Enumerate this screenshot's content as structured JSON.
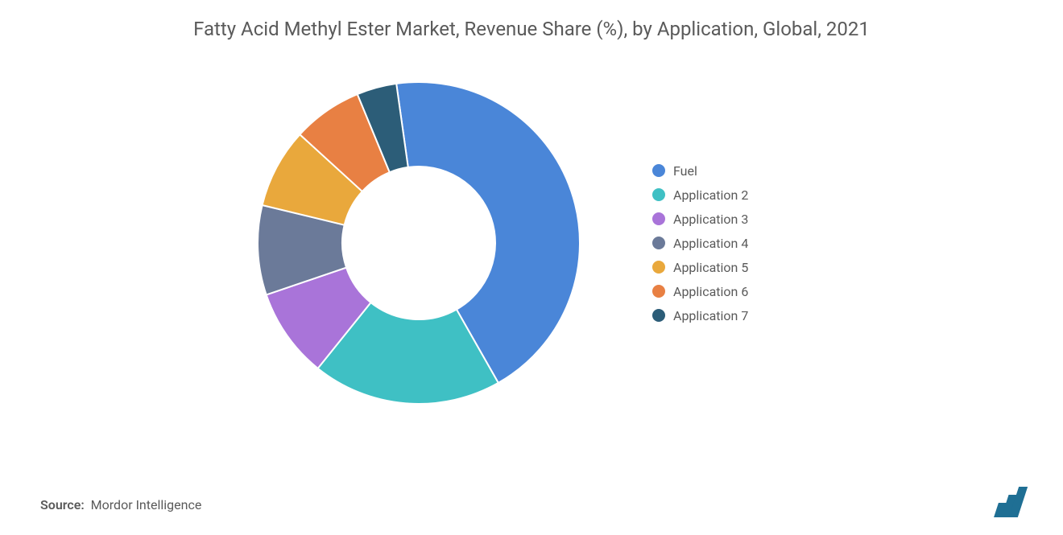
{
  "chart": {
    "type": "donut",
    "title": "Fatty Acid Methyl Ester Market, Revenue Share (%), by Application, Global, 2021",
    "title_fontsize": 24,
    "title_color": "#5a5a5a",
    "background_color": "#ffffff",
    "donut_outer_radius": 200,
    "donut_inner_radius": 95,
    "start_angle_deg": -98,
    "segments": [
      {
        "label": "Fuel",
        "value": 44,
        "color": "#4a86d8"
      },
      {
        "label": "Application 2",
        "value": 19,
        "color": "#3fc0c4"
      },
      {
        "label": "Application 3",
        "value": 9,
        "color": "#a974d9"
      },
      {
        "label": "Application 4",
        "value": 9,
        "color": "#6b7a99"
      },
      {
        "label": "Application 5",
        "value": 8,
        "color": "#e9a83c"
      },
      {
        "label": "Application 6",
        "value": 7,
        "color": "#e88043"
      },
      {
        "label": "Application 7",
        "value": 4,
        "color": "#2c5d78"
      }
    ],
    "legend": {
      "marker_shape": "circle",
      "marker_size": 16,
      "label_fontsize": 16,
      "label_color": "#5a5a5a",
      "position": "right"
    }
  },
  "source": {
    "label": "Source:",
    "text": "Mordor Intelligence",
    "fontsize": 16,
    "color": "#5a5a5a"
  },
  "logo": {
    "name": "mordor-intelligence-logo",
    "bar_color": "#1f6f94",
    "bars": [
      18,
      28,
      38
    ]
  }
}
